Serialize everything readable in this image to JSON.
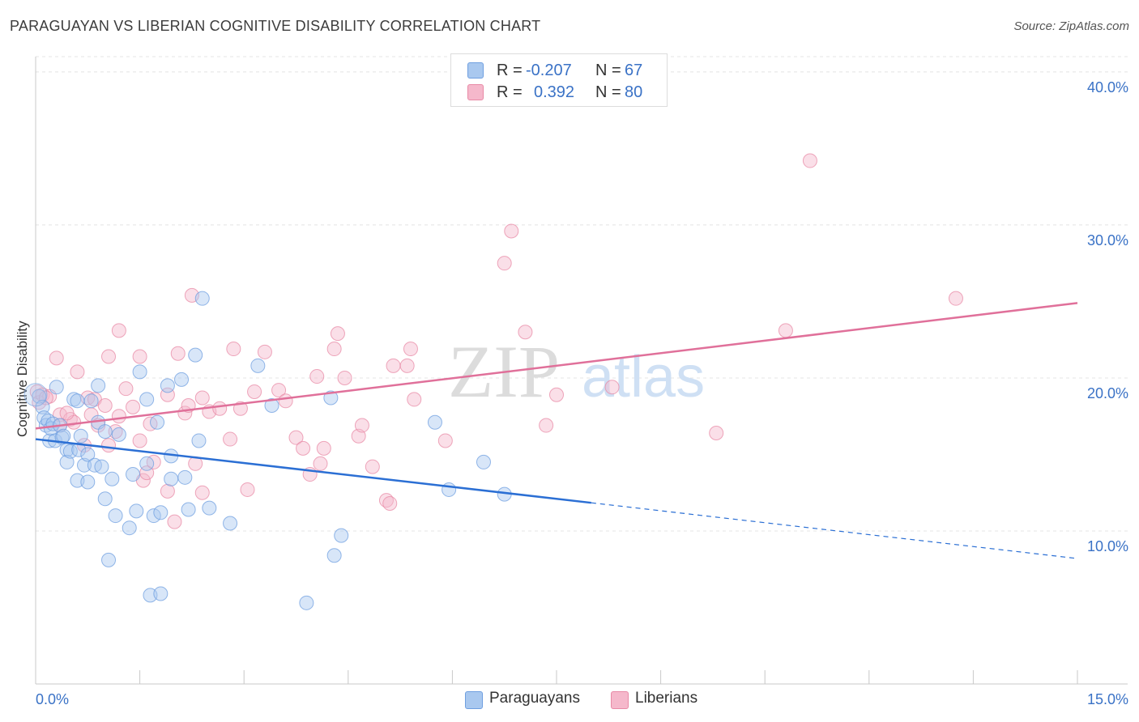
{
  "title": "PARAGUAYAN VS LIBERIAN COGNITIVE DISABILITY CORRELATION CHART",
  "source": "Source: ZipAtlas.com",
  "watermark": {
    "zip": "ZIP",
    "atlas": "atlas"
  },
  "legend": {
    "rows": [
      {
        "r_label": "R =",
        "r_value": "-0.207",
        "n_label": "N =",
        "n_value": "67",
        "color": "#a9c8ef"
      },
      {
        "r_label": "R =",
        "r_value": "0.392",
        "n_label": "N =",
        "n_value": "80",
        "color": "#f5b8cb"
      }
    ]
  },
  "bottom_legend": [
    {
      "label": "Paraguayans",
      "color": "#a9c8ef"
    },
    {
      "label": "Liberians",
      "color": "#f5b8cb"
    }
  ],
  "colors": {
    "blue_fill": "#a9c8ef",
    "blue_stroke": "#6f9fe0",
    "blue_line": "#2b6fd4",
    "pink_fill": "#f5b8cb",
    "pink_stroke": "#e88aa6",
    "pink_line": "#e0709a",
    "tick_label": "#3a72c6",
    "grid": "#e4e4e4",
    "axis": "#c8c8c8"
  },
  "chart_data": {
    "type": "scatter",
    "title": "PARAGUAYAN VS LIBERIAN COGNITIVE DISABILITY CORRELATION CHART",
    "xlabel": "",
    "ylabel": "Cognitive Disability",
    "xlim": [
      0,
      15
    ],
    "ylim": [
      0,
      41
    ],
    "x_tick_labels": [
      {
        "value": 0,
        "label": "0.0%"
      },
      {
        "value": 15,
        "label": "15.0%"
      }
    ],
    "y_tick_labels": [
      {
        "value": 10,
        "label": "10.0%"
      },
      {
        "value": 20,
        "label": "20.0%"
      },
      {
        "value": 30,
        "label": "30.0%"
      },
      {
        "value": 40,
        "label": "40.0%"
      }
    ],
    "grid": true,
    "legend_position": "top-center",
    "series": [
      {
        "name": "Paraguayans",
        "color": "#a9c8ef",
        "points": [
          [
            0.05,
            18.8
          ],
          [
            0.1,
            18.1
          ],
          [
            0.12,
            17.4
          ],
          [
            0.15,
            16.9
          ],
          [
            0.18,
            17.2
          ],
          [
            0.2,
            15.9
          ],
          [
            0.22,
            16.7
          ],
          [
            0.25,
            17.0
          ],
          [
            0.28,
            15.9
          ],
          [
            0.3,
            19.4
          ],
          [
            0.35,
            16.9
          ],
          [
            0.38,
            16.1
          ],
          [
            0.4,
            16.2
          ],
          [
            0.45,
            15.3
          ],
          [
            0.45,
            14.5
          ],
          [
            0.5,
            15.2
          ],
          [
            0.55,
            18.6
          ],
          [
            0.6,
            13.3
          ],
          [
            0.62,
            15.3
          ],
          [
            0.65,
            16.2
          ],
          [
            0.7,
            14.3
          ],
          [
            0.75,
            15.0
          ],
          [
            0.75,
            13.2
          ],
          [
            0.8,
            18.5
          ],
          [
            0.85,
            14.3
          ],
          [
            0.9,
            19.5
          ],
          [
            0.9,
            17.1
          ],
          [
            1.0,
            16.5
          ],
          [
            1.0,
            12.1
          ],
          [
            1.05,
            8.1
          ],
          [
            1.1,
            13.4
          ],
          [
            1.15,
            11.0
          ],
          [
            1.35,
            10.2
          ],
          [
            1.4,
            13.7
          ],
          [
            1.45,
            11.3
          ],
          [
            1.5,
            20.4
          ],
          [
            1.6,
            18.6
          ],
          [
            1.75,
            17.1
          ],
          [
            1.65,
            5.8
          ],
          [
            1.8,
            5.9
          ],
          [
            1.9,
            19.5
          ],
          [
            1.95,
            13.4
          ],
          [
            1.95,
            14.9
          ],
          [
            2.15,
            13.5
          ],
          [
            2.2,
            11.4
          ],
          [
            2.1,
            19.9
          ],
          [
            2.3,
            21.5
          ],
          [
            2.35,
            15.9
          ],
          [
            2.4,
            25.2
          ],
          [
            2.5,
            11.5
          ],
          [
            2.8,
            10.5
          ],
          [
            3.2,
            20.8
          ],
          [
            3.4,
            18.2
          ],
          [
            3.9,
            5.3
          ],
          [
            4.25,
            18.7
          ],
          [
            4.3,
            8.4
          ],
          [
            4.4,
            9.7
          ],
          [
            5.75,
            17.1
          ],
          [
            5.95,
            12.7
          ],
          [
            6.45,
            14.5
          ],
          [
            6.75,
            12.4
          ],
          [
            1.7,
            11.0
          ],
          [
            1.2,
            16.3
          ],
          [
            0.6,
            18.5
          ],
          [
            1.6,
            14.4
          ],
          [
            1.8,
            11.2
          ],
          [
            0.95,
            14.2
          ]
        ]
      },
      {
        "name": "Liberians",
        "color": "#f5b8cb",
        "points": [
          [
            0.02,
            19.1
          ],
          [
            0.05,
            18.4
          ],
          [
            0.1,
            18.9
          ],
          [
            0.2,
            18.8
          ],
          [
            0.3,
            21.3
          ],
          [
            0.35,
            17.6
          ],
          [
            0.35,
            16.9
          ],
          [
            0.5,
            17.3
          ],
          [
            0.55,
            17.1
          ],
          [
            0.6,
            20.4
          ],
          [
            0.7,
            15.6
          ],
          [
            0.75,
            18.7
          ],
          [
            0.8,
            17.6
          ],
          [
            0.85,
            18.6
          ],
          [
            0.9,
            16.9
          ],
          [
            1.0,
            18.2
          ],
          [
            1.05,
            15.6
          ],
          [
            1.15,
            16.5
          ],
          [
            1.2,
            17.5
          ],
          [
            1.2,
            23.1
          ],
          [
            1.3,
            19.3
          ],
          [
            1.4,
            18.1
          ],
          [
            1.5,
            21.4
          ],
          [
            1.5,
            15.9
          ],
          [
            1.55,
            13.3
          ],
          [
            1.6,
            13.8
          ],
          [
            1.65,
            17.0
          ],
          [
            1.7,
            14.5
          ],
          [
            1.9,
            12.6
          ],
          [
            1.9,
            18.9
          ],
          [
            2.0,
            10.6
          ],
          [
            2.05,
            21.6
          ],
          [
            2.15,
            17.7
          ],
          [
            2.2,
            18.2
          ],
          [
            2.25,
            25.4
          ],
          [
            2.3,
            14.4
          ],
          [
            2.4,
            18.7
          ],
          [
            2.4,
            12.5
          ],
          [
            2.5,
            17.8
          ],
          [
            2.65,
            18.0
          ],
          [
            2.8,
            16.0
          ],
          [
            2.85,
            21.9
          ],
          [
            2.95,
            18.0
          ],
          [
            3.05,
            12.7
          ],
          [
            3.15,
            19.1
          ],
          [
            3.3,
            21.7
          ],
          [
            3.5,
            19.2
          ],
          [
            3.6,
            18.5
          ],
          [
            3.75,
            16.1
          ],
          [
            3.85,
            15.4
          ],
          [
            3.95,
            13.7
          ],
          [
            4.05,
            20.1
          ],
          [
            4.1,
            14.4
          ],
          [
            4.15,
            15.4
          ],
          [
            4.3,
            21.9
          ],
          [
            4.35,
            22.9
          ],
          [
            4.45,
            20.0
          ],
          [
            4.65,
            16.2
          ],
          [
            4.7,
            16.9
          ],
          [
            4.85,
            14.2
          ],
          [
            5.05,
            12.0
          ],
          [
            5.1,
            11.8
          ],
          [
            5.15,
            20.8
          ],
          [
            5.35,
            20.8
          ],
          [
            5.4,
            21.9
          ],
          [
            5.45,
            18.6
          ],
          [
            5.9,
            15.9
          ],
          [
            6.75,
            27.5
          ],
          [
            6.85,
            29.6
          ],
          [
            7.05,
            23.0
          ],
          [
            7.35,
            16.9
          ],
          [
            7.5,
            18.9
          ],
          [
            8.3,
            19.4
          ],
          [
            9.8,
            16.4
          ],
          [
            10.8,
            23.1
          ],
          [
            11.15,
            34.2
          ],
          [
            13.25,
            25.2
          ],
          [
            0.15,
            18.7
          ],
          [
            1.05,
            21.4
          ],
          [
            0.45,
            17.7
          ]
        ]
      }
    ],
    "trend_lines": [
      {
        "series": "Paraguayans",
        "x": [
          0,
          15
        ],
        "y": [
          16.0,
          8.2
        ],
        "solid_until_x": 8.0
      },
      {
        "series": "Liberians",
        "x": [
          0,
          15
        ],
        "y": [
          16.7,
          24.9
        ]
      }
    ]
  }
}
